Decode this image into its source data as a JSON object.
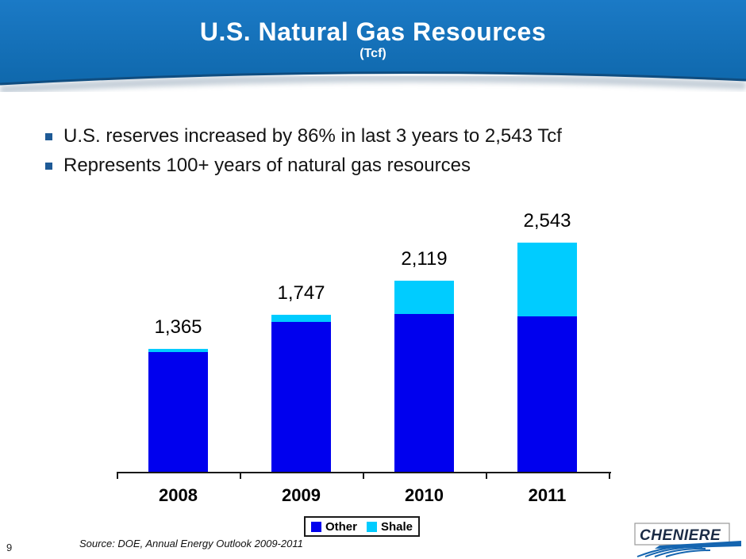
{
  "slide": {
    "page_number": "9",
    "header": {
      "title": "U.S. Natural Gas Resources",
      "subtitle": "(Tcf)",
      "background_color": "#1470b8",
      "edge_line_color": "#0f4d80"
    },
    "bullets": [
      "U.S. reserves increased by 86% in last 3 years to 2,543 Tcf",
      "Represents 100+ years of natural gas resources"
    ],
    "source": "Source: DOE, Annual Energy Outlook 2009-2011",
    "logo_text": "CHENIERE"
  },
  "chart_data": {
    "type": "bar",
    "stacked": true,
    "title": "",
    "xlabel": "",
    "ylabel": "",
    "categories": [
      "2008",
      "2009",
      "2010",
      "2011"
    ],
    "series": [
      {
        "name": "Other",
        "color": "#0000EE",
        "values": [
          1330,
          1667,
          1749,
          1723
        ]
      },
      {
        "name": "Shale",
        "color": "#00CCFF",
        "values": [
          35,
          80,
          370,
          820
        ]
      }
    ],
    "totals": [
      1365,
      1747,
      2119,
      2543
    ],
    "total_labels": [
      "1,365",
      "1,747",
      "2,119",
      "2,543"
    ],
    "ylim": [
      0,
      2800
    ],
    "grid": false,
    "y_axis_visible": false,
    "legend_position": "bottom"
  },
  "colors": {
    "bullet_marker": "#1e5a96",
    "bar_other": "#0000EE",
    "bar_shale": "#00CCFF",
    "axis": "#1a1a1a",
    "logo_navy": "#1b2b45",
    "logo_blue": "#1565b0"
  }
}
